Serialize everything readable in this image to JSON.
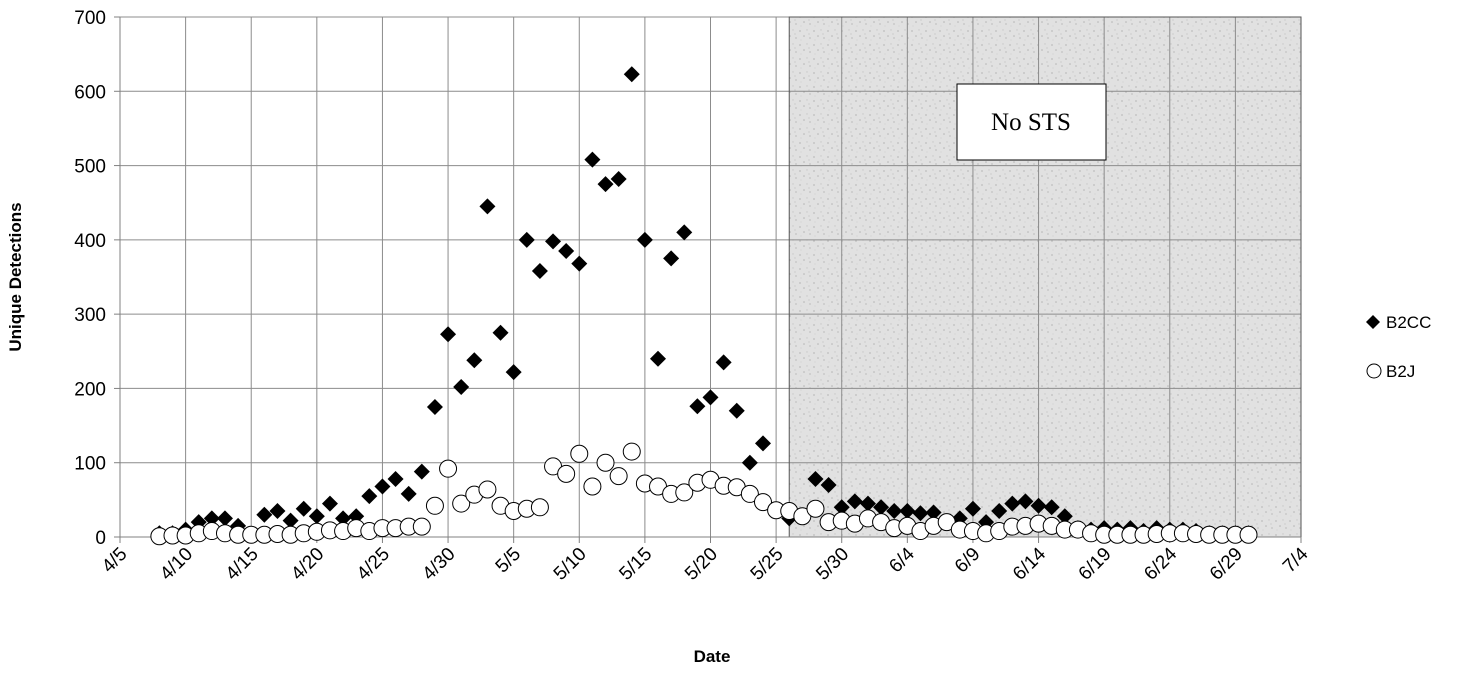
{
  "chart_data": {
    "type": "scatter",
    "xlabel": "Date",
    "ylabel": "Unique Detections",
    "xlim": [
      "4/5",
      "7/4"
    ],
    "ylim": [
      0,
      700
    ],
    "y_ticks": [
      0,
      100,
      200,
      300,
      400,
      500,
      600,
      700
    ],
    "x_ticks": [
      "4/5",
      "4/10",
      "4/15",
      "4/20",
      "4/25",
      "4/30",
      "5/5",
      "5/10",
      "5/15",
      "5/20",
      "5/25",
      "5/30",
      "6/4",
      "6/9",
      "6/14",
      "6/19",
      "6/24",
      "6/29",
      "7/4"
    ],
    "grid": true,
    "legend_position": "right",
    "shaded_region": {
      "from": "5/26",
      "to": "7/4",
      "label": "No STS"
    },
    "series": [
      {
        "name": "B2CC",
        "marker": "filled-diamond",
        "color": "#000000",
        "x": [
          "4/8",
          "4/9",
          "4/10",
          "4/11",
          "4/12",
          "4/13",
          "4/14",
          "4/16",
          "4/17",
          "4/18",
          "4/19",
          "4/20",
          "4/21",
          "4/22",
          "4/23",
          "4/24",
          "4/25",
          "4/26",
          "4/27",
          "4/28",
          "4/29",
          "4/30",
          "5/1",
          "5/2",
          "5/3",
          "5/4",
          "5/5",
          "5/6",
          "5/7",
          "5/8",
          "5/9",
          "5/10",
          "5/11",
          "5/12",
          "5/13",
          "5/14",
          "5/15",
          "5/16",
          "5/17",
          "5/18",
          "5/19",
          "5/20",
          "5/21",
          "5/22",
          "5/23",
          "5/24",
          "5/25",
          "5/26",
          "5/28",
          "5/29",
          "5/30",
          "5/31",
          "6/1",
          "6/2",
          "6/3",
          "6/4",
          "6/5",
          "6/6",
          "6/7",
          "6/8",
          "6/9",
          "6/10",
          "6/11",
          "6/12",
          "6/13",
          "6/14",
          "6/15",
          "6/16",
          "6/17",
          "6/18",
          "6/19",
          "6/20",
          "6/21",
          "6/22",
          "6/23",
          "6/24",
          "6/25",
          "6/26",
          "6/27",
          "6/28",
          "6/29",
          "6/30"
        ],
        "y": [
          5,
          5,
          10,
          20,
          25,
          25,
          15,
          30,
          35,
          22,
          38,
          28,
          45,
          25,
          28,
          55,
          68,
          78,
          58,
          88,
          175,
          273,
          202,
          238,
          445,
          275,
          222,
          400,
          358,
          398,
          385,
          368,
          508,
          475,
          482,
          623,
          400,
          240,
          375,
          410,
          176,
          188,
          235,
          170,
          100,
          126,
          35,
          25,
          78,
          70,
          40,
          48,
          45,
          40,
          35,
          35,
          32,
          33,
          20,
          25,
          38,
          20,
          35,
          45,
          48,
          42,
          40,
          28,
          12,
          10,
          12,
          10,
          12,
          8,
          12,
          10,
          10,
          8,
          5,
          5,
          5,
          5
        ]
      },
      {
        "name": "B2J",
        "marker": "open-circle",
        "color": "#000000",
        "x": [
          "4/8",
          "4/9",
          "4/10",
          "4/11",
          "4/12",
          "4/13",
          "4/14",
          "4/15",
          "4/16",
          "4/17",
          "4/18",
          "4/19",
          "4/20",
          "4/21",
          "4/22",
          "4/23",
          "4/24",
          "4/25",
          "4/26",
          "4/27",
          "4/28",
          "4/29",
          "4/30",
          "5/1",
          "5/2",
          "5/3",
          "5/4",
          "5/5",
          "5/6",
          "5/7",
          "5/8",
          "5/9",
          "5/10",
          "5/11",
          "5/12",
          "5/13",
          "5/14",
          "5/15",
          "5/16",
          "5/17",
          "5/18",
          "5/19",
          "5/20",
          "5/21",
          "5/22",
          "5/23",
          "5/24",
          "5/25",
          "5/26",
          "5/27",
          "5/28",
          "5/29",
          "5/30",
          "5/31",
          "6/1",
          "6/2",
          "6/3",
          "6/4",
          "6/5",
          "6/6",
          "6/7",
          "6/8",
          "6/9",
          "6/10",
          "6/11",
          "6/12",
          "6/13",
          "6/14",
          "6/15",
          "6/16",
          "6/17",
          "6/18",
          "6/19",
          "6/20",
          "6/21",
          "6/22",
          "6/23",
          "6/24",
          "6/25",
          "6/26",
          "6/27",
          "6/28",
          "6/29",
          "6/30"
        ],
        "y": [
          1,
          2,
          2,
          5,
          8,
          5,
          3,
          3,
          3,
          4,
          3,
          5,
          7,
          9,
          8,
          12,
          8,
          12,
          12,
          14,
          14,
          42,
          92,
          45,
          57,
          64,
          42,
          35,
          38,
          40,
          95,
          85,
          112,
          68,
          100,
          82,
          115,
          72,
          68,
          58,
          60,
          73,
          77,
          69,
          67,
          58,
          47,
          36,
          35,
          28,
          38,
          20,
          22,
          18,
          25,
          20,
          12,
          15,
          8,
          15,
          20,
          10,
          8,
          5,
          8,
          14,
          15,
          18,
          15,
          10,
          10,
          5,
          3,
          3,
          3,
          3,
          4,
          5,
          5,
          4,
          3,
          3,
          3,
          3
        ]
      }
    ]
  }
}
